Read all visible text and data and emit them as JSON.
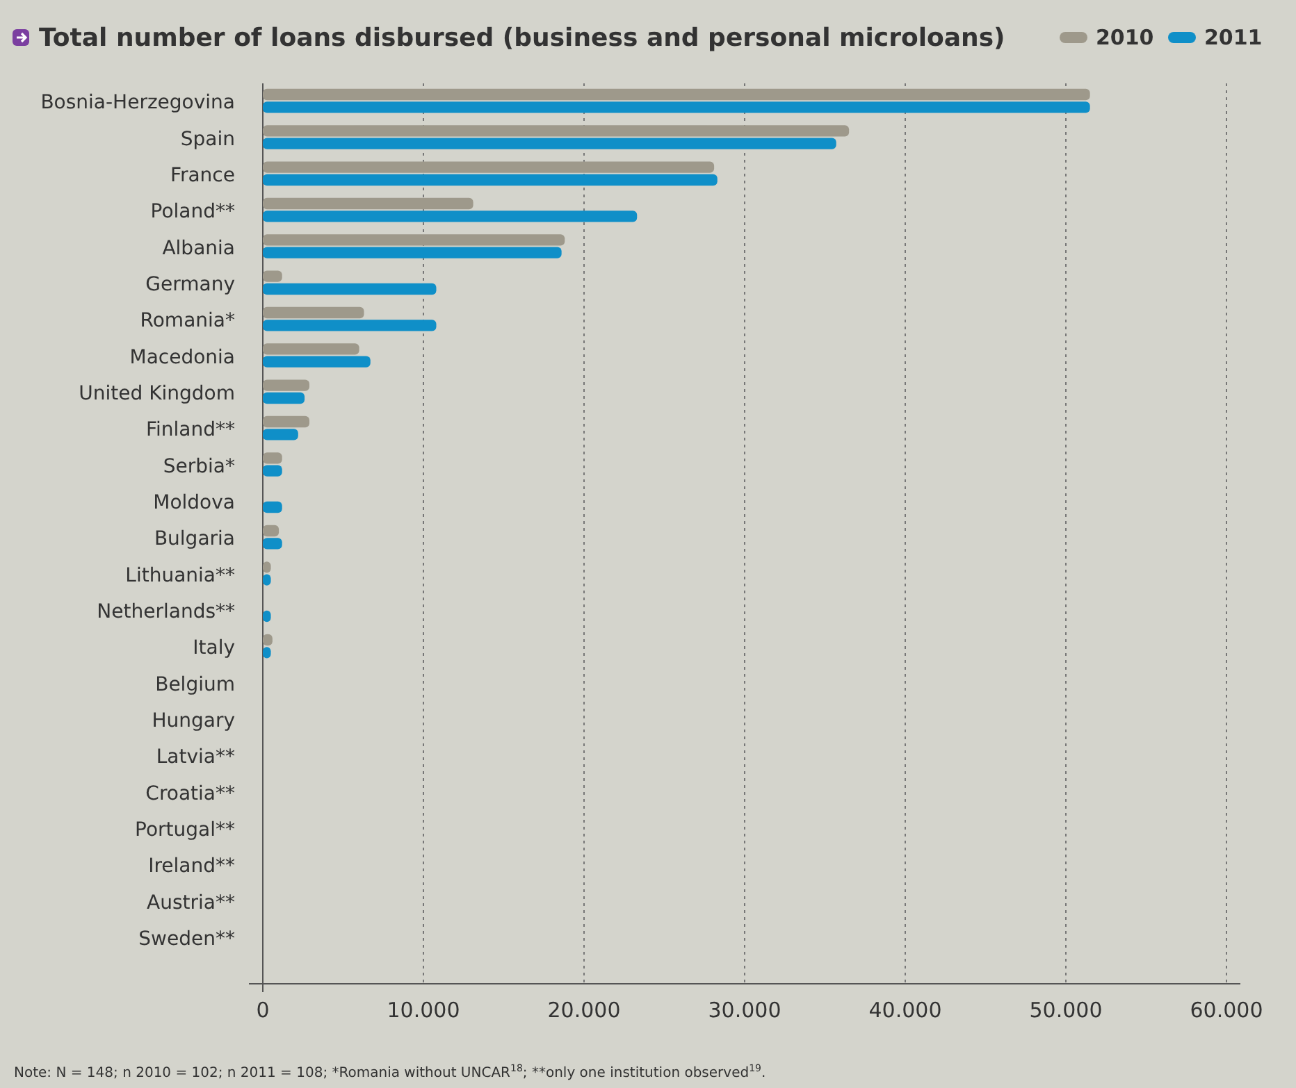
{
  "chart_data": {
    "type": "bar",
    "orientation": "horizontal",
    "title": "Total number of loans disbursed (business and personal microloans)",
    "categories": [
      "Bosnia-Herzegovina",
      "Spain",
      "France",
      "Poland**",
      "Albania",
      "Germany",
      "Romania*",
      "Macedonia",
      "United Kingdom",
      "Finland**",
      "Serbia*",
      "Moldova",
      "Bulgaria",
      "Lithuania**",
      "Netherlands**",
      "Italy",
      "Belgium",
      "Hungary",
      "Latvia**",
      "Croatia**",
      "Portugal**",
      "Ireland**",
      "Austria**",
      "Sweden**"
    ],
    "series": [
      {
        "name": "2010",
        "color": "#9e998b",
        "values": [
          51500,
          36500,
          28100,
          13100,
          18800,
          1200,
          6300,
          6000,
          2900,
          2900,
          1200,
          null,
          1000,
          500,
          null,
          600,
          null,
          null,
          null,
          null,
          null,
          null,
          null,
          null
        ]
      },
      {
        "name": "2011",
        "color": "#0f8fc8",
        "values": [
          51500,
          35700,
          28300,
          23300,
          18600,
          10800,
          10800,
          6700,
          2600,
          2200,
          1200,
          1200,
          1200,
          500,
          500,
          500,
          null,
          null,
          null,
          null,
          null,
          null,
          null,
          null
        ]
      }
    ],
    "xlim": [
      0,
      60000
    ],
    "xticks": [
      {
        "value": 0,
        "label": "0"
      },
      {
        "value": 10000,
        "label": "10.000"
      },
      {
        "value": 20000,
        "label": "20.000"
      },
      {
        "value": 30000,
        "label": "30.000"
      },
      {
        "value": 40000,
        "label": "40.000"
      },
      {
        "value": 50000,
        "label": "50.000"
      },
      {
        "value": 60000,
        "label": "60.000"
      }
    ],
    "grid": "x",
    "legend": "top right",
    "annotations": [
      "Note: N = 148; n 2010 = 102; n 2011 = 108; *Romania without UNCAR$^{18}$; **only one institution observed$^{19}$."
    ]
  }
}
